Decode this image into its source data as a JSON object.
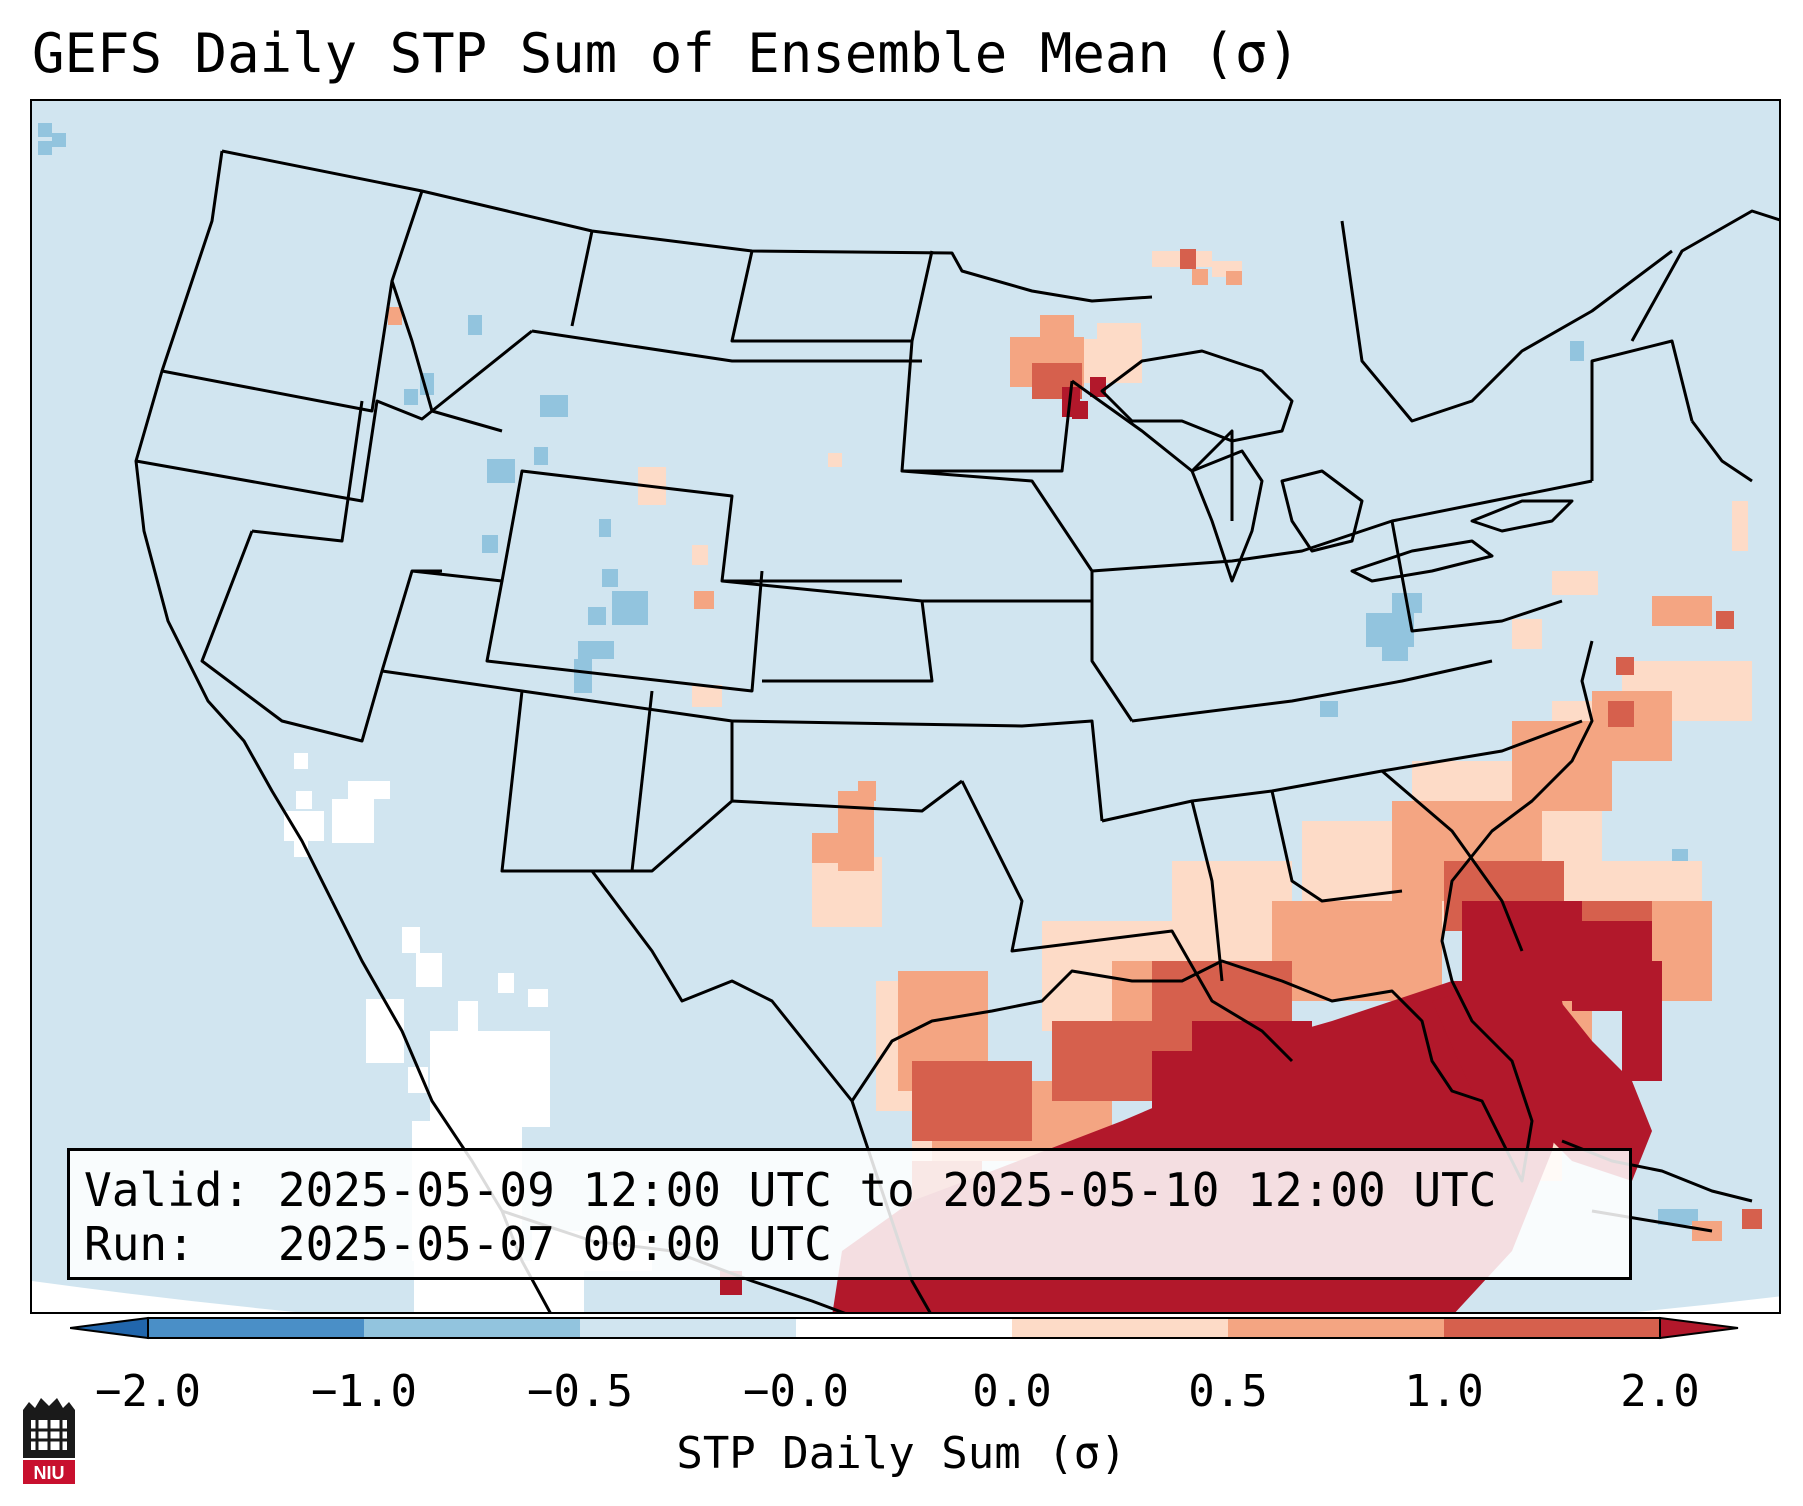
{
  "title": "GEFS Daily STP Sum of Ensemble Mean (σ)",
  "info": {
    "valid_label": "Valid:",
    "valid_value": "2025-05-09 12:00 UTC to 2025-05-10 12:00 UTC",
    "run_label": "Run:",
    "run_value": "2025-05-07 00:00 UTC"
  },
  "colorbar": {
    "label": "STP Daily Sum (σ)",
    "ticks": [
      "−2.0",
      "−1.0",
      "−0.5",
      "−0.0",
      "0.0",
      "0.5",
      "1.0",
      "2.0"
    ],
    "colors": [
      "#4a8fc7",
      "#92c4de",
      "#d1e5f0",
      "#ffffff",
      "#fddbc7",
      "#f4a582",
      "#d6604d"
    ],
    "extend_low_color": "#2166ac",
    "extend_high_color": "#b2182b"
  },
  "map": {
    "background_color": "#d1e5f0",
    "border_color": "#000000"
  },
  "logo": {
    "text": "NIU"
  }
}
